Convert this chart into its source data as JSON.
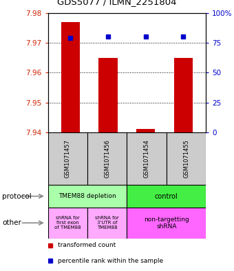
{
  "title": "GDS5077 / ILMN_2251804",
  "samples": [
    "GSM1071457",
    "GSM1071456",
    "GSM1071454",
    "GSM1071455"
  ],
  "transformed_counts": [
    7.977,
    7.965,
    7.941,
    7.965
  ],
  "percentile_ranks": [
    79,
    80,
    80,
    80
  ],
  "y_min": 7.94,
  "y_max": 7.98,
  "y_ticks": [
    7.94,
    7.95,
    7.96,
    7.97,
    7.98
  ],
  "pct_ticks": [
    0,
    25,
    50,
    75,
    100
  ],
  "bar_color": "#cc0000",
  "dot_color": "#0000cc",
  "label_color_red": "#cc2200",
  "label_color_blue": "#0000cc",
  "sample_box_color": "#cccccc",
  "protocol_color_left": "#aaffaa",
  "protocol_color_right": "#44ee44",
  "other_color_left1": "#ffaaff",
  "other_color_left2": "#ffaaff",
  "other_color_right": "#ff66ff",
  "bar_width": 0.5
}
